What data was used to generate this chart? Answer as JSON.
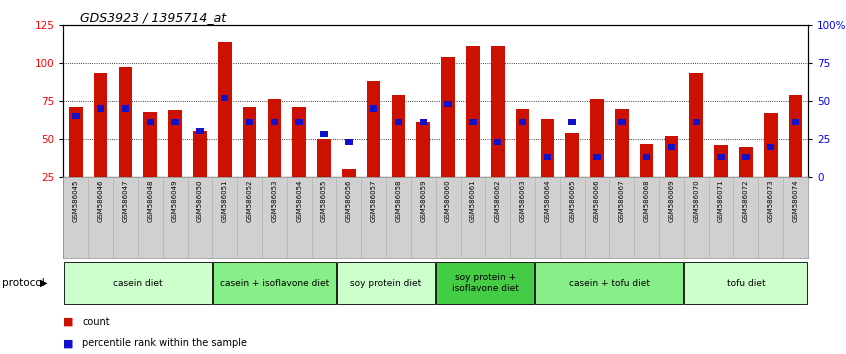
{
  "title": "GDS3923 / 1395714_at",
  "samples": [
    "GSM586045",
    "GSM586046",
    "GSM586047",
    "GSM586048",
    "GSM586049",
    "GSM586050",
    "GSM586051",
    "GSM586052",
    "GSM586053",
    "GSM586054",
    "GSM586055",
    "GSM586056",
    "GSM586057",
    "GSM586058",
    "GSM586059",
    "GSM586060",
    "GSM586061",
    "GSM586062",
    "GSM586063",
    "GSM586064",
    "GSM586065",
    "GSM586066",
    "GSM586067",
    "GSM586068",
    "GSM586069",
    "GSM586070",
    "GSM586071",
    "GSM586072",
    "GSM586073",
    "GSM586074"
  ],
  "counts": [
    71,
    93,
    97,
    68,
    69,
    55,
    114,
    71,
    76,
    71,
    50,
    30,
    88,
    79,
    61,
    104,
    111,
    111,
    70,
    63,
    54,
    76,
    70,
    47,
    52,
    93,
    46,
    45,
    67,
    79
  ],
  "percentile_ranks": [
    40,
    45,
    45,
    36,
    36,
    30,
    52,
    36,
    36,
    36,
    28,
    23,
    45,
    36,
    36,
    48,
    36,
    23,
    36,
    13,
    36,
    13,
    36,
    13,
    20,
    36,
    13,
    13,
    20,
    36
  ],
  "groups": [
    {
      "label": "casein diet",
      "start": 0,
      "end": 5,
      "color": "#ccffcc"
    },
    {
      "label": "casein + isoflavone diet",
      "start": 6,
      "end": 10,
      "color": "#88ee88"
    },
    {
      "label": "soy protein diet",
      "start": 11,
      "end": 14,
      "color": "#ccffcc"
    },
    {
      "label": "soy protein +\nisoflavone diet",
      "start": 15,
      "end": 18,
      "color": "#44cc44"
    },
    {
      "label": "casein + tofu diet",
      "start": 19,
      "end": 24,
      "color": "#88ee88"
    },
    {
      "label": "tofu diet",
      "start": 25,
      "end": 29,
      "color": "#ccffcc"
    }
  ],
  "bar_color": "#cc1100",
  "percentile_color": "#1111cc",
  "left_ylim": [
    25,
    125
  ],
  "left_yticks": [
    25,
    50,
    75,
    100,
    125
  ],
  "right_ylim": [
    0,
    100
  ],
  "right_yticks": [
    0,
    25,
    50,
    75,
    100
  ],
  "right_yticklabels": [
    "0",
    "25",
    "50",
    "75",
    "100%"
  ],
  "grid_lines": [
    50,
    75,
    100
  ],
  "label_bg": "#d0d0d0",
  "bar_width": 0.55,
  "pct_bar_width": 0.3
}
